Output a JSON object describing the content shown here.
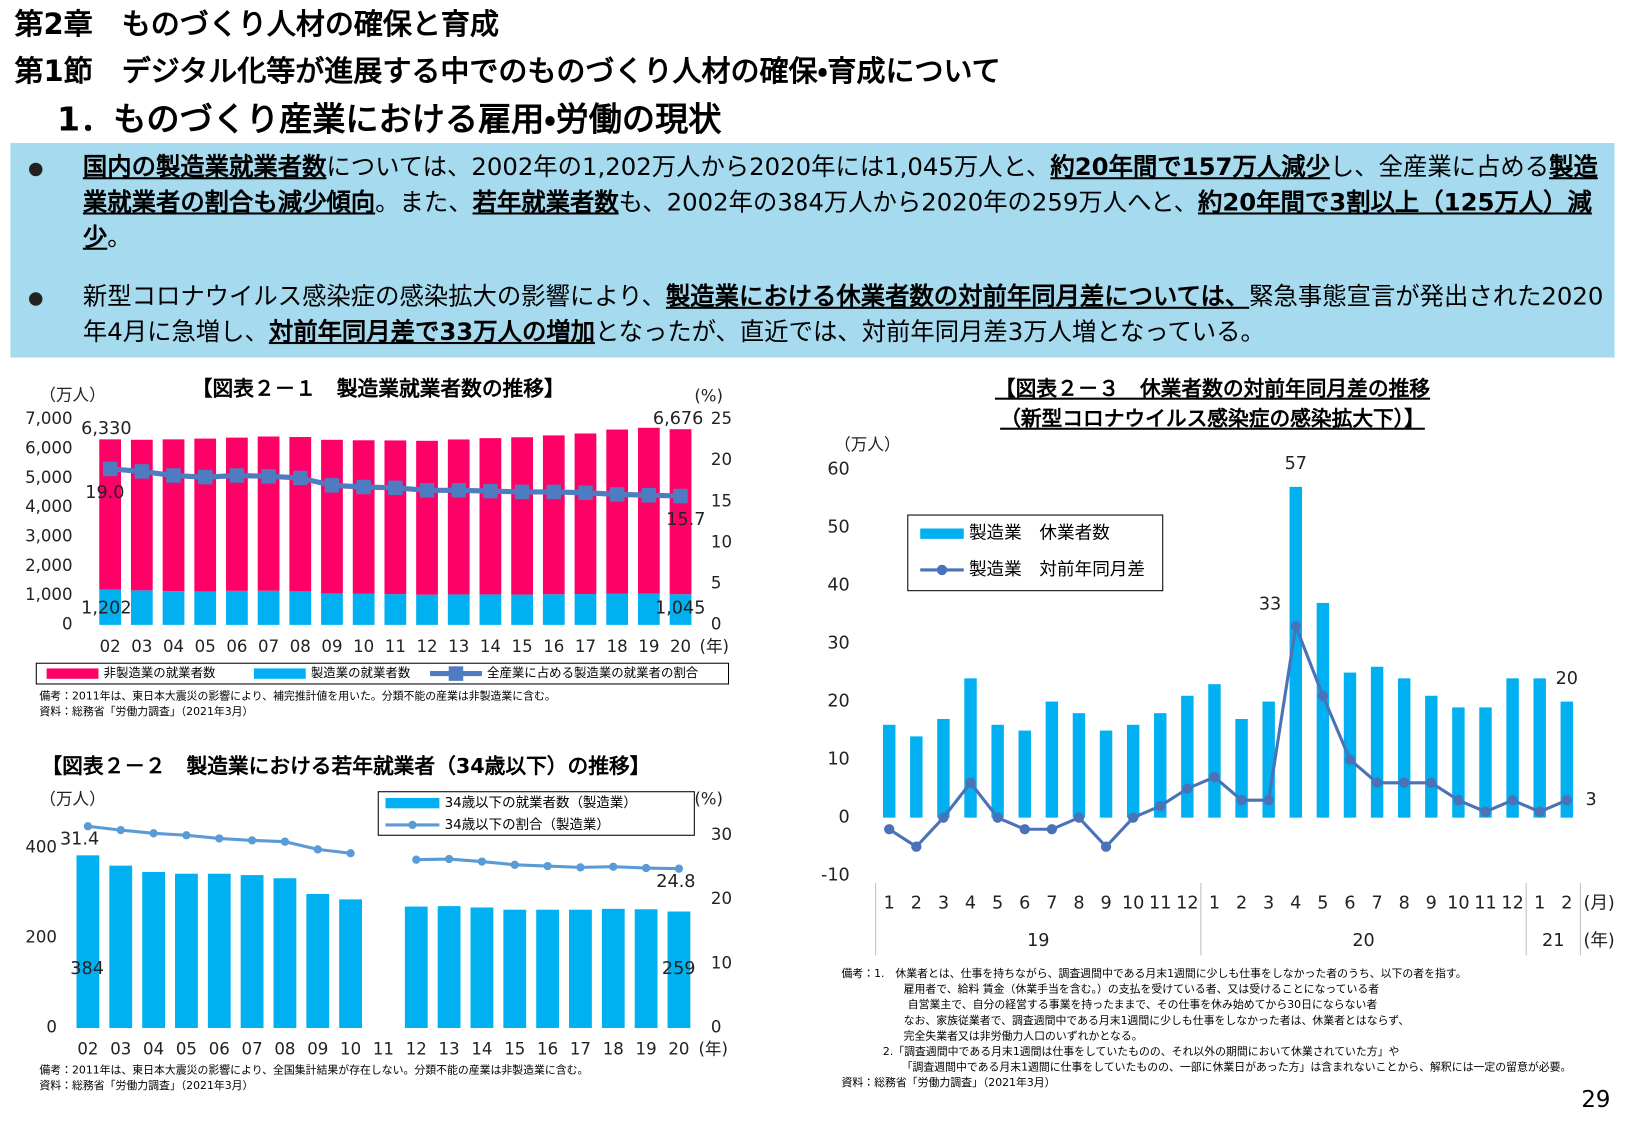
{
  "header": {
    "chapter": "第2章　ものづくり人材の確保と育成",
    "section": "第1節　デジタル化等が進展する中でのものづくり人材の確保・育成について",
    "subsection": "1．ものづくり産業における雇用・労働の現状"
  },
  "bullets": [
    {
      "segments": [
        {
          "text": "国内の製造業就業者数",
          "em": true
        },
        {
          "text": "については、2002年の1,202万人から2020年には1,045万人と、"
        },
        {
          "text": "約20年間で157万人減少",
          "em": true
        },
        {
          "text": "し、全産業に占める"
        },
        {
          "text": "製造業就業者の割合も減少傾向",
          "em": true
        },
        {
          "text": "。また、"
        },
        {
          "text": "若年就業者数",
          "em": true
        },
        {
          "text": "も、2002年の384万人から2020年の259万人へと、"
        },
        {
          "text": "約20年間で3割以上（125万人）減少",
          "em": true
        },
        {
          "text": "。"
        }
      ]
    },
    {
      "segments": [
        {
          "text": "新型コロナウイルス感染症の感染拡大の影響により、"
        },
        {
          "text": "製造業における休業者数の対前年同月差については、",
          "em": true
        },
        {
          "text": "緊急事態宣言が発出された2020年4月に急増し、"
        },
        {
          "text": "対前年同月差で33万人の増加",
          "em": true
        },
        {
          "text": "となったが、直近では、対前年同月差3万人増となっている。"
        }
      ]
    }
  ],
  "chart_data": [
    {
      "type": "stacked_bar",
      "title": "【図表２－１　製造業就業者数の推移】",
      "y_unit": "（万人）",
      "y2_unit": "(%)",
      "x_unit": "(年)",
      "categories": [
        "02",
        "03",
        "04",
        "05",
        "06",
        "07",
        "08",
        "09",
        "10",
        "11",
        "12",
        "13",
        "14",
        "15",
        "16",
        "17",
        "18",
        "19",
        "20"
      ],
      "ylim": [
        0,
        7000
      ],
      "yticks": [
        0,
        {
          "value": 1000,
          "label": "1,000"
        },
        {
          "value": 2000,
          "label": "2,000"
        },
        {
          "value": 3000,
          "label": "3,000"
        },
        {
          "value": 4000,
          "label": "4,000"
        },
        {
          "value": 5000,
          "label": "5,000"
        },
        {
          "value": 6000,
          "label": "6,000"
        },
        {
          "value": 7000,
          "label": "7,000"
        }
      ],
      "y2lim": [
        0,
        25
      ],
      "y2ticks": [
        0,
        5,
        10,
        15,
        20,
        25
      ],
      "grid": false,
      "series": [
        {
          "name": "非製造業の就業者数",
          "type": "bar",
          "color": "#ff0066",
          "values": [
            5128,
            5138,
            5179,
            5214,
            5228,
            5262,
            5265,
            5241,
            5238,
            5244,
            5248,
            5287,
            5331,
            5366,
            5420,
            5478,
            5604,
            5661,
            5631
          ]
        },
        {
          "name": "製造業の就業者数",
          "type": "bar",
          "color": "#00b0f0",
          "values": [
            1202,
            1178,
            1150,
            1142,
            1161,
            1165,
            1144,
            1073,
            1060,
            1049,
            1032,
            1039,
            1040,
            1035,
            1045,
            1052,
            1060,
            1063,
            1045
          ],
          "value_labels": [
            "1,202",
            null,
            null,
            null,
            null,
            null,
            null,
            null,
            null,
            null,
            null,
            null,
            null,
            null,
            null,
            null,
            null,
            null,
            "1,045"
          ]
        },
        {
          "name": "全産業に占める製造業の就業者の割合",
          "type": "line",
          "axis": "y2",
          "color": "#4f7bc0",
          "marker": "square",
          "values": [
            19.0,
            18.7,
            18.2,
            18.0,
            18.2,
            18.1,
            17.9,
            17.0,
            16.8,
            16.7,
            16.4,
            16.4,
            16.3,
            16.2,
            16.2,
            16.1,
            15.9,
            15.8,
            15.7
          ],
          "value_labels": [
            "19.0",
            null,
            null,
            null,
            null,
            null,
            null,
            null,
            null,
            null,
            null,
            null,
            null,
            null,
            null,
            null,
            null,
            null,
            "15.7"
          ]
        }
      ],
      "total_labels": [
        "6,330",
        null,
        null,
        null,
        null,
        null,
        null,
        null,
        null,
        null,
        null,
        null,
        null,
        null,
        null,
        null,
        null,
        null,
        "6,676"
      ],
      "notes": [
        "備考：2011年は、東日本大震災の影響により、補完推計値を用いた。分類不能の産業は非製造業に含む。",
        "資料：総務省「労働力調査」（2021年3月）"
      ]
    },
    {
      "type": "bar",
      "title": "【図表２－２　製造業における若年就業者（34歳以下）の推移】",
      "y_unit": "（万人）",
      "y2_unit": "(%)",
      "x_unit": "(年)",
      "categories": [
        "02",
        "03",
        "04",
        "05",
        "06",
        "07",
        "08",
        "09",
        "10",
        "11",
        "12",
        "13",
        "14",
        "15",
        "16",
        "17",
        "18",
        "19",
        "20"
      ],
      "ylim": [
        0,
        500
      ],
      "yticks": [
        0,
        200,
        400
      ],
      "y2lim": [
        0,
        35
      ],
      "y2ticks": [
        0,
        10,
        20,
        30
      ],
      "grid": false,
      "series": [
        {
          "name": "34歳以下の就業者数（製造業）",
          "type": "bar",
          "color": "#00b0f0",
          "values": [
            384,
            361,
            347,
            343,
            343,
            340,
            333,
            298,
            286,
            null,
            270,
            271,
            268,
            263,
            263,
            263,
            265,
            264,
            259
          ],
          "value_labels": [
            "384",
            null,
            null,
            null,
            null,
            null,
            null,
            null,
            null,
            null,
            null,
            null,
            null,
            null,
            null,
            null,
            null,
            null,
            "259"
          ]
        },
        {
          "name": "34歳以下の割合（製造業）",
          "type": "line",
          "axis": "y2",
          "color": "#5b9bd5",
          "marker": "circle",
          "values": [
            31.4,
            30.8,
            30.3,
            30.0,
            29.5,
            29.2,
            29.0,
            27.8,
            27.2,
            null,
            26.2,
            26.3,
            25.9,
            25.4,
            25.2,
            25.0,
            25.1,
            24.9,
            24.8
          ],
          "value_labels": [
            "31.4",
            null,
            null,
            null,
            null,
            null,
            null,
            null,
            null,
            null,
            null,
            null,
            null,
            null,
            null,
            null,
            null,
            null,
            "24.8"
          ]
        }
      ],
      "notes": [
        "備考：2011年は、東日本大震災の影響により、全国集計結果が存在しない。分類不能の産業は非製造業に含む。",
        "資料：総務省「労働力調査」（2021年3月）"
      ]
    },
    {
      "type": "bar",
      "title": "【図表２－３　休業者数の対前年同月差の推移",
      "subtitle": "（新型コロナウイルス感染症の感染拡大下）】",
      "y_unit": "（万人）",
      "x_unit": "(月)",
      "year_unit": "(年)",
      "categories": [
        "1",
        "2",
        "3",
        "4",
        "5",
        "6",
        "7",
        "8",
        "9",
        "10",
        "11",
        "12",
        "1",
        "2",
        "3",
        "4",
        "5",
        "6",
        "7",
        "8",
        "9",
        "10",
        "11",
        "12",
        "1",
        "2"
      ],
      "year_labels": [
        "19",
        "20",
        "21"
      ],
      "ylim": [
        -10,
        60
      ],
      "yticks": [
        -10,
        0,
        10,
        20,
        30,
        40,
        50,
        60
      ],
      "grid": false,
      "series": [
        {
          "name": "製造業　休業者数",
          "type": "bar",
          "color": "#00b0f0",
          "values": [
            16,
            14,
            17,
            24,
            16,
            15,
            20,
            18,
            15,
            16,
            18,
            21,
            23,
            17,
            20,
            57,
            37,
            25,
            26,
            24,
            21,
            19,
            19,
            24,
            24,
            20
          ],
          "value_labels": [
            null,
            null,
            null,
            null,
            null,
            null,
            null,
            null,
            null,
            null,
            null,
            null,
            null,
            null,
            null,
            "57",
            null,
            null,
            null,
            null,
            null,
            null,
            null,
            null,
            null,
            "20"
          ]
        },
        {
          "name": "製造業　対前年同月差",
          "type": "line",
          "color": "#4a72b8",
          "marker": "circle",
          "values": [
            -2,
            -5,
            0,
            6,
            0,
            -2,
            -2,
            0,
            -5,
            0,
            2,
            5,
            7,
            3,
            3,
            33,
            21,
            10,
            6,
            6,
            6,
            3,
            1,
            3,
            1,
            3
          ],
          "value_labels": [
            null,
            null,
            null,
            null,
            null,
            null,
            null,
            null,
            null,
            null,
            null,
            null,
            null,
            null,
            null,
            "33",
            null,
            null,
            null,
            null,
            null,
            null,
            null,
            null,
            null,
            "3"
          ]
        }
      ],
      "notes": [
        "備考：1.　休業者とは、仕事を持ちながら、調査週間中である月末1週間に少しも仕事をしなかった者のうち、以下の者を指す。",
        "雇用者で、給料 賃金（休業手当を含む。）の支払を受けている者、又は受けることになっている者",
        "自営業主で、自分の経営する事業を持ったままで、その仕事を休み始めてから30日にならない者",
        "なお、家族従業者で、調査週間中である月末1週間に少しも仕事をしなかった者は、休業者とはならず、",
        "完全失業者又は非労働力人口のいずれかとなる。",
        "2.「調査週間中である月末1週間は仕事をしていたものの、それ以外の期間において休業されていた方」や",
        "「調査週間中である月末1週間に仕事をしていたものの、一部に休業日があった方」は含まれないことから、解釈には一定の留意が必要。",
        "資料：総務省「労働力調査」（2021年3月）"
      ]
    }
  ],
  "page_number": "29"
}
